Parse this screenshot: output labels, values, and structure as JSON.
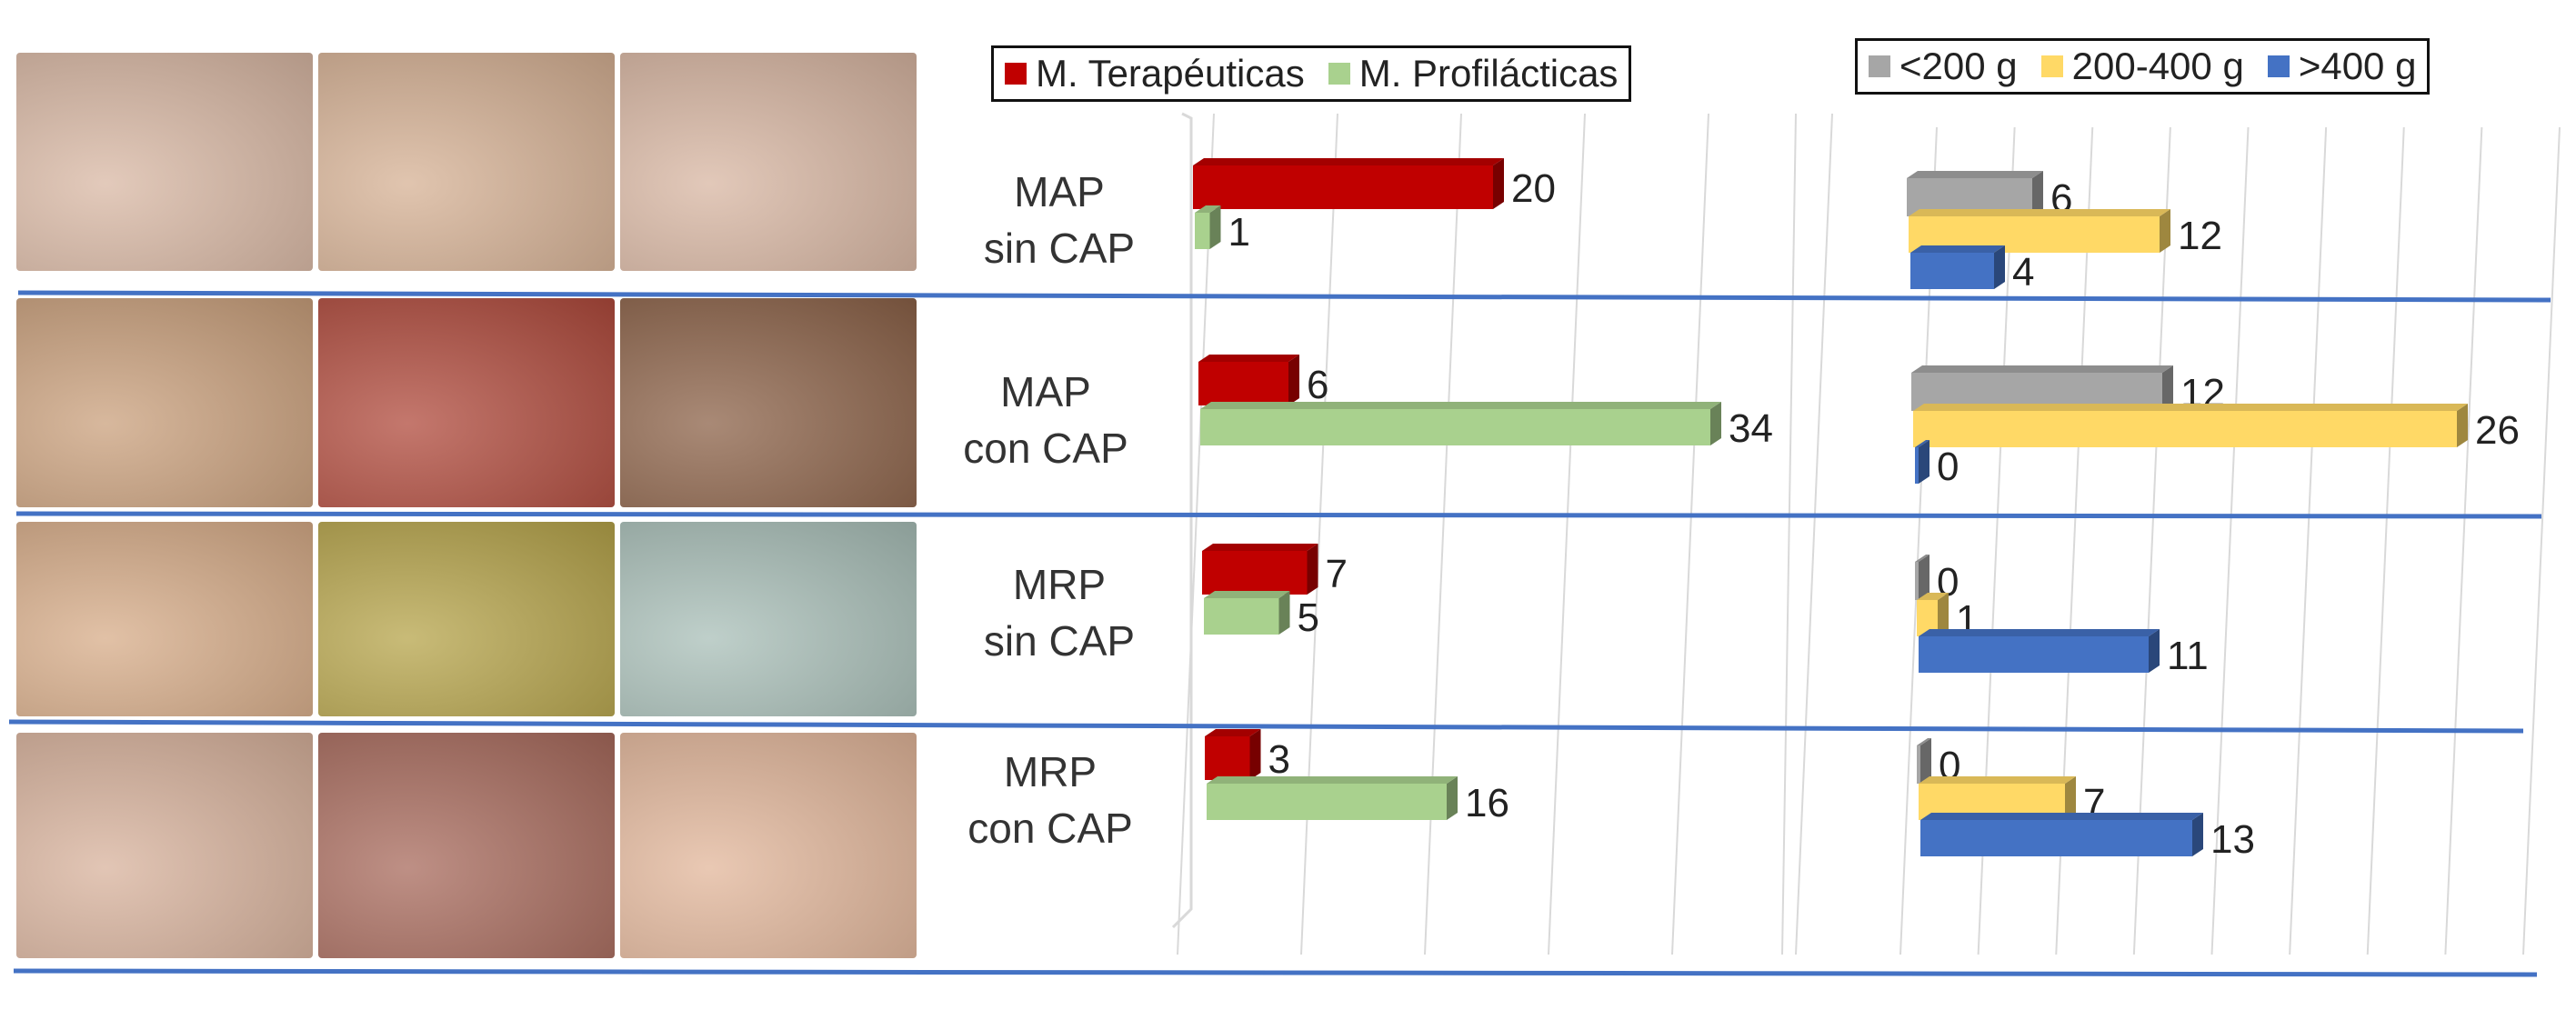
{
  "rows": [
    {
      "line1": "MAP",
      "line2": "sin CAP"
    },
    {
      "line1": "MAP",
      "line2": "con CAP"
    },
    {
      "line1": "MRP",
      "line2": "sin CAP"
    },
    {
      "line1": "MRP",
      "line2": "con CAP"
    }
  ],
  "legend_indication": {
    "items": [
      {
        "label": "M. Terapéuticas",
        "color": "#c00000"
      },
      {
        "label": "M. Profilácticas",
        "color": "#a9d18e"
      }
    ]
  },
  "legend_weight": {
    "items": [
      {
        "label": "<200 g",
        "color": "#a6a6a6"
      },
      {
        "label": "200-400 g",
        "color": "#ffd966"
      },
      {
        "label": ">400 g",
        "color": "#4472c4"
      }
    ]
  },
  "colors": {
    "separator": "#4472c4",
    "grid": "#d9d9d9",
    "label_text": "#333333"
  },
  "chart_data": [
    {
      "type": "bar",
      "orientation": "horizontal",
      "categories": [
        "MAP sin CAP",
        "MAP con CAP",
        "MRP sin CAP",
        "MRP con CAP"
      ],
      "series": [
        {
          "name": "M. Terapéuticas",
          "values": [
            20,
            6,
            7,
            3
          ]
        },
        {
          "name": "M. Profilácticas",
          "values": [
            1,
            34,
            5,
            16
          ]
        }
      ],
      "xlim": [
        0,
        40
      ],
      "grid": true,
      "legend_position": "top"
    },
    {
      "type": "bar",
      "orientation": "horizontal",
      "categories": [
        "MAP sin CAP",
        "MAP con CAP",
        "MRP sin CAP",
        "MRP con CAP"
      ],
      "series": [
        {
          "name": "<200 g",
          "values": [
            6,
            12,
            0,
            0
          ]
        },
        {
          "name": "200-400 g",
          "values": [
            12,
            26,
            1,
            7
          ]
        },
        {
          "name": ">400 g",
          "values": [
            4,
            0,
            11,
            13
          ]
        }
      ],
      "xlim": [
        0,
        30
      ],
      "grid": true,
      "legend_position": "top"
    }
  ]
}
